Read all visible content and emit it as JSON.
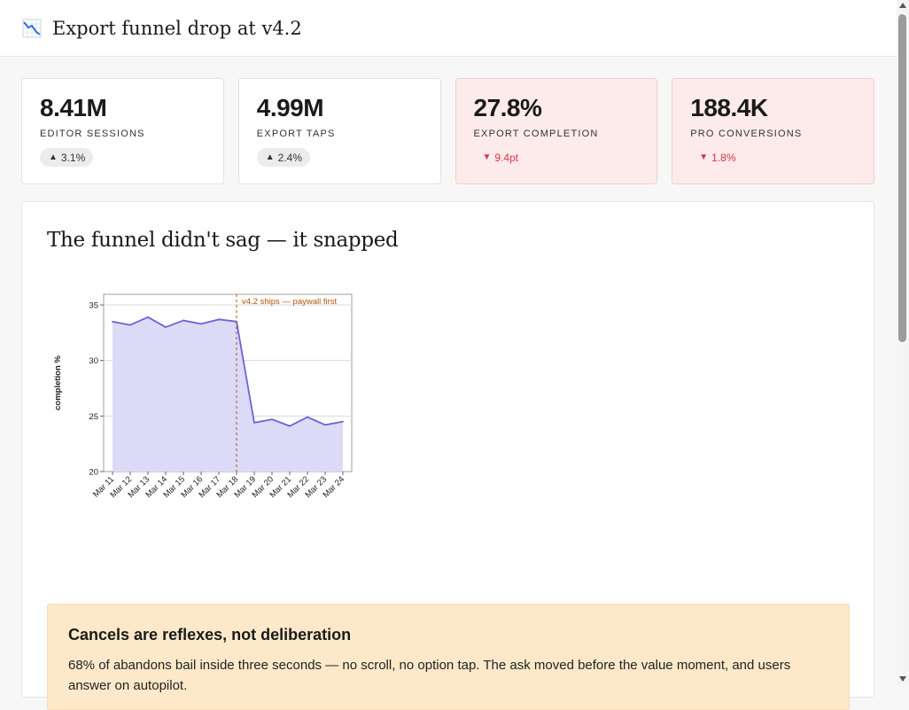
{
  "header": {
    "title": "Export funnel drop at v4.2",
    "icon": "chart-decreasing-icon"
  },
  "kpis": [
    {
      "value": "8.41M",
      "label": "EDITOR SESSIONS",
      "delta": "3.1%",
      "direction": "up"
    },
    {
      "value": "4.99M",
      "label": "EXPORT TAPS",
      "delta": "2.4%",
      "direction": "up"
    },
    {
      "value": "27.8%",
      "label": "EXPORT COMPLETION",
      "delta": "9.4pt",
      "direction": "down"
    },
    {
      "value": "188.4K",
      "label": "PRO CONVERSIONS",
      "delta": "1.8%",
      "direction": "down"
    }
  ],
  "panel": {
    "title": "The funnel didn't sag — it snapped"
  },
  "callout": {
    "title": "Cancels are reflexes, not deliberation",
    "body": "68% of abandons bail inside three seconds — no scroll, no option tap. The ask moved before the value moment, and users answer on autopilot."
  },
  "colors": {
    "line": "#6b63d8",
    "area": "#dcdaf6",
    "annotation": "#b45309",
    "alert_bg": "#fdeaea",
    "down": "#d03a4a",
    "callout_bg": "#fde9c9"
  },
  "chart_data": {
    "type": "area",
    "x": [
      "Mar 11",
      "Mar 12",
      "Mar 13",
      "Mar 14",
      "Mar 15",
      "Mar 16",
      "Mar 17",
      "Mar 18",
      "Mar 19",
      "Mar 20",
      "Mar 21",
      "Mar 22",
      "Mar 23",
      "Mar 24"
    ],
    "series": [
      {
        "values": [
          33.5,
          33.2,
          33.9,
          33.0,
          33.6,
          33.3,
          33.7,
          33.5,
          24.4,
          24.7,
          24.1,
          24.9,
          24.2,
          24.5
        ]
      }
    ],
    "ylabel": "completion %",
    "xlabel": "",
    "ylim": [
      20,
      35.96
    ],
    "yticks": [
      20,
      25,
      30,
      35
    ],
    "grid": true,
    "annotation": {
      "x": "Mar 18",
      "label": "v4.2 ships — paywall first"
    }
  }
}
